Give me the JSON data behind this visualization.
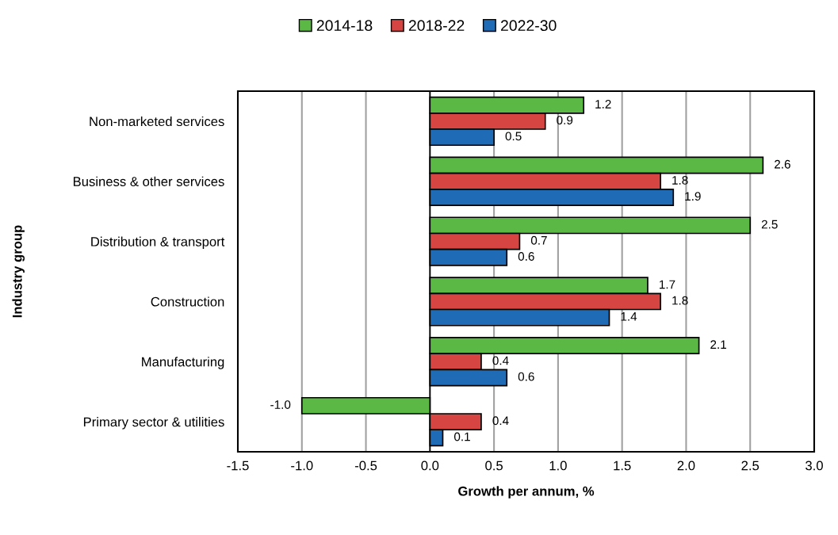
{
  "chart_data": {
    "type": "bar",
    "orientation": "horizontal",
    "xlabel": "Growth per annum, %",
    "ylabel": "Industry group",
    "categories": [
      "Non-marketed services",
      "Business & other services",
      "Distribution & transport",
      "Construction",
      "Manufacturing",
      "Primary sector & utilities"
    ],
    "series": [
      {
        "name": "2014-18",
        "color": "#5cb845",
        "values": [
          1.2,
          2.6,
          2.5,
          1.7,
          2.1,
          -1.0
        ],
        "value_labels": [
          "1.2",
          "2.6",
          "2.5",
          "1.7",
          "2.1",
          "-1.0"
        ]
      },
      {
        "name": "2018-22",
        "color": "#d64541",
        "values": [
          0.9,
          1.8,
          0.7,
          1.8,
          0.4,
          0.4
        ],
        "value_labels": [
          "0.9",
          "1.8",
          "0.7",
          "1.8",
          "0.4",
          "0.4"
        ]
      },
      {
        "name": "2022-30",
        "color": "#1f6bb5",
        "values": [
          0.5,
          1.9,
          0.6,
          1.4,
          0.6,
          0.1
        ],
        "value_labels": [
          "0.5",
          "1.9",
          "0.6",
          "1.4",
          "0.6",
          "0.1"
        ]
      }
    ],
    "xlim": [
      -1.5,
      3.0
    ],
    "xticks": [
      {
        "value": -1.5,
        "label": "-1.5"
      },
      {
        "value": -1.0,
        "label": "-1.0"
      },
      {
        "value": -0.5,
        "label": "-0.5"
      },
      {
        "value": 0.0,
        "label": "0.0"
      },
      {
        "value": 0.5,
        "label": "0.5"
      },
      {
        "value": 1.0,
        "label": "1.0"
      },
      {
        "value": 1.5,
        "label": "1.5"
      },
      {
        "value": 2.0,
        "label": "2.0"
      },
      {
        "value": 2.5,
        "label": "2.5"
      },
      {
        "value": 3.0,
        "label": "3.0"
      }
    ],
    "grid": "x",
    "legend": "top"
  }
}
